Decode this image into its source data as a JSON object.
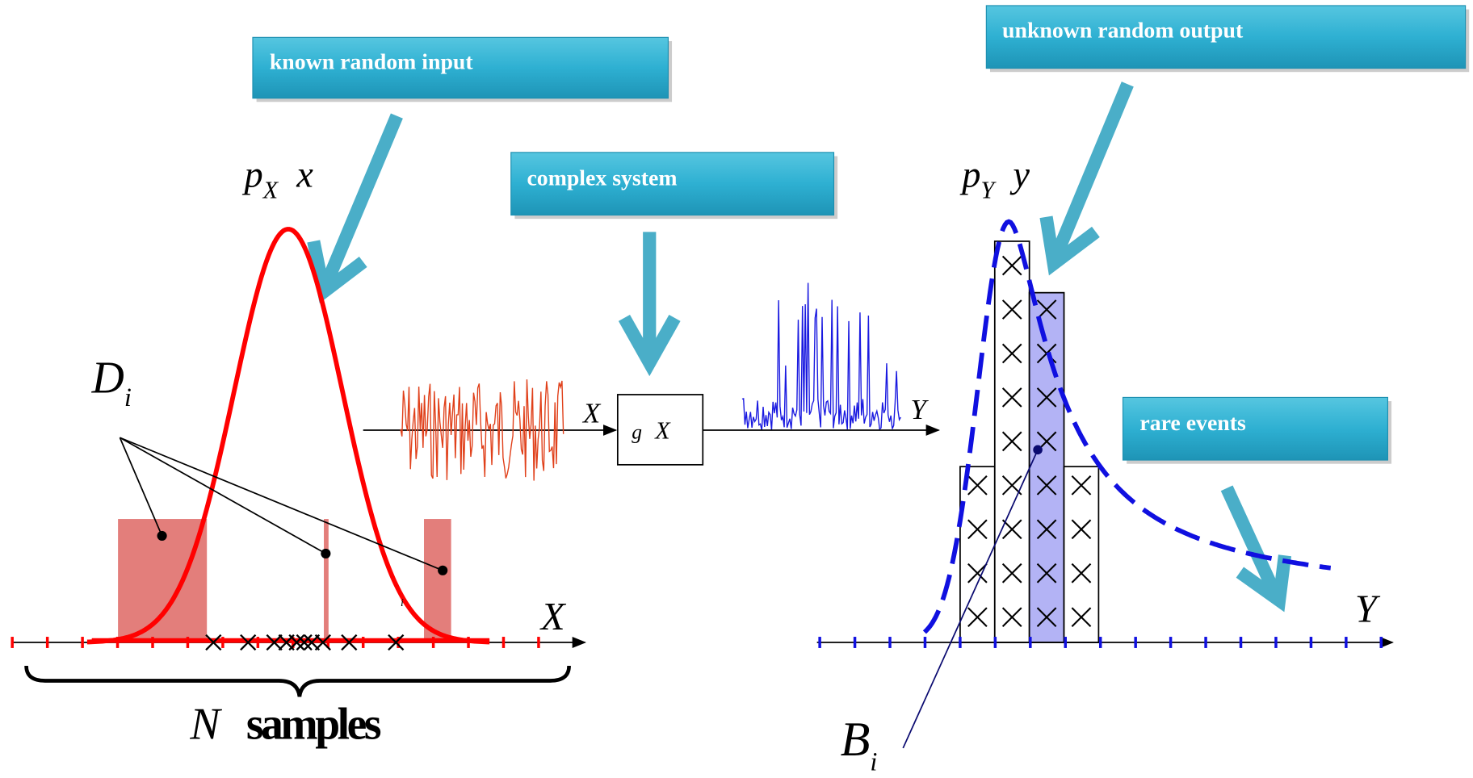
{
  "callouts": [
    "known random input",
    "complex system",
    "unknown random output",
    "rare events"
  ],
  "input_pdf": {
    "symbol": "p",
    "subscript": "X",
    "argument": "x"
  },
  "output_pdf": {
    "symbol": "p",
    "subscript": "Y",
    "argument": "y"
  },
  "input_domains": {
    "symbol": "D",
    "subscript": "i"
  },
  "output_bins": {
    "symbol": "B",
    "subscript": "i"
  },
  "samples": {
    "symbol": "N",
    "word": "samples"
  },
  "input_axis": "X",
  "output_axis": "Y",
  "system": {
    "function": "g",
    "argument": "X"
  },
  "signal_in": "X",
  "signal_out": "Y",
  "small_index": "i"
}
